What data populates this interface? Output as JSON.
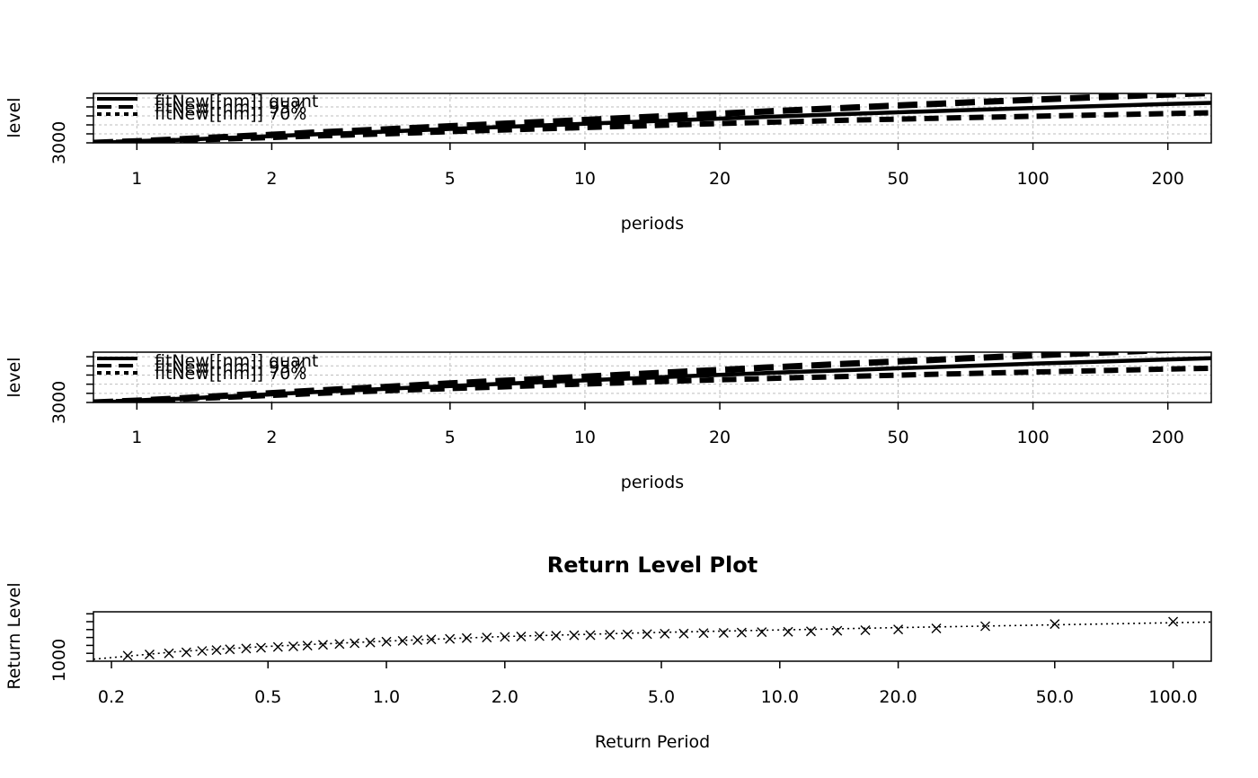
{
  "chart_data": [
    {
      "type": "line",
      "title": "",
      "xlabel": "periods",
      "ylabel": "level",
      "x_scale": "log",
      "xlim": [
        0.8,
        250
      ],
      "ylim": [
        3000,
        3550
      ],
      "x_ticks": [
        1,
        2,
        5,
        10,
        20,
        50,
        100,
        200
      ],
      "y_tick_labels": [
        "3000"
      ],
      "y_ticks": [
        3000,
        3100,
        3200,
        3300,
        3400,
        3500
      ],
      "grid": true,
      "legend": {
        "placement": "top-left",
        "entries": [
          "fitNew[[nm]] quant",
          "fitNew[[nm]] 95%",
          "fitNew[[nm]] 70%"
        ]
      },
      "x": [
        0.8,
        1,
        1.2,
        1.5,
        2,
        2.5,
        3,
        4,
        5,
        6,
        7,
        8,
        10,
        12,
        15,
        20,
        25,
        30,
        40,
        50,
        60,
        70,
        80,
        100,
        120,
        150,
        200,
        250
      ],
      "series": [
        {
          "name": "fitNew[[nm]] quant",
          "values": [
            3000,
            3015,
            3030,
            3050,
            3075,
            3095,
            3110,
            3135,
            3155,
            3170,
            3183,
            3194,
            3212,
            3228,
            3246,
            3270,
            3288,
            3302,
            3324,
            3340,
            3353,
            3364,
            3373,
            3388,
            3400,
            3414,
            3432,
            3445
          ]
        },
        {
          "name": "fitNew[[nm]] 95%",
          "values": [
            3000,
            3018,
            3036,
            3060,
            3090,
            3115,
            3132,
            3162,
            3185,
            3203,
            3219,
            3232,
            3255,
            3274,
            3296,
            3325,
            3348,
            3366,
            3394,
            3416,
            3433,
            3448,
            3460,
            3480,
            3496,
            3515,
            3538,
            3555
          ]
        },
        {
          "name": "fitNew[[nm]] 70%",
          "values": [
            3000,
            3012,
            3024,
            3040,
            3060,
            3076,
            3088,
            3108,
            3125,
            3137,
            3147,
            3156,
            3170,
            3182,
            3196,
            3215,
            3228,
            3238,
            3254,
            3264,
            3273,
            3280,
            3286,
            3296,
            3304,
            3313,
            3326,
            3335
          ]
        }
      ]
    },
    {
      "type": "line",
      "title": "",
      "xlabel": "periods",
      "ylabel": "level",
      "x_scale": "log",
      "xlim": [
        0.8,
        250
      ],
      "ylim": [
        3000,
        3550
      ],
      "x_ticks": [
        1,
        2,
        5,
        10,
        20,
        50,
        100,
        200
      ],
      "y_tick_labels": [
        "3000"
      ],
      "y_ticks": [
        3000,
        3100,
        3200,
        3300,
        3400,
        3500
      ],
      "grid": true,
      "legend": {
        "placement": "top-left",
        "entries": [
          "fitNew[[nm]] quant",
          "fitNew[[nm]] 95%",
          "fitNew[[nm]] 70%"
        ]
      },
      "x": [
        0.8,
        1,
        1.2,
        1.5,
        2,
        2.5,
        3,
        4,
        5,
        6,
        7,
        8,
        10,
        12,
        15,
        20,
        25,
        30,
        40,
        50,
        60,
        70,
        80,
        100,
        120,
        150,
        200,
        250
      ],
      "series": [
        {
          "name": "fitNew[[nm]] quant",
          "values": [
            3000,
            3018,
            3036,
            3060,
            3090,
            3114,
            3132,
            3160,
            3180,
            3196,
            3210,
            3222,
            3242,
            3258,
            3278,
            3302,
            3320,
            3335,
            3357,
            3374,
            3387,
            3398,
            3408,
            3424,
            3436,
            3451,
            3470,
            3484
          ]
        },
        {
          "name": "fitNew[[nm]] 95%",
          "values": [
            3000,
            3020,
            3040,
            3068,
            3102,
            3130,
            3150,
            3183,
            3208,
            3228,
            3244,
            3258,
            3282,
            3302,
            3326,
            3356,
            3380,
            3398,
            3427,
            3449,
            3466,
            3481,
            3494,
            3515,
            3531,
            3550,
            3575,
            3594
          ]
        },
        {
          "name": "fitNew[[nm]] 70%",
          "values": [
            3000,
            3016,
            3032,
            3052,
            3078,
            3098,
            3114,
            3137,
            3152,
            3164,
            3176,
            3186,
            3202,
            3214,
            3230,
            3248,
            3260,
            3272,
            3287,
            3299,
            3308,
            3315,
            3322,
            3333,
            3341,
            3352,
            3365,
            3374
          ]
        }
      ]
    },
    {
      "type": "scatter",
      "title": "Return Level Plot",
      "xlabel": "Return Period",
      "ylabel": "Return Level",
      "x_scale": "log",
      "xlim": [
        0.18,
        125
      ],
      "ylim": [
        1000,
        1250
      ],
      "x_ticks": [
        0.2,
        0.5,
        1.0,
        2.0,
        5.0,
        10.0,
        20.0,
        50.0,
        100.0
      ],
      "x_tick_labels": [
        "0.2",
        "0.5",
        "1.0",
        "2.0",
        "5.0",
        "10.0",
        "20.0",
        "50.0",
        "100.0"
      ],
      "y_tick_labels": [
        "1000"
      ],
      "y_ticks": [
        1000,
        1040,
        1080,
        1120,
        1160,
        1200,
        1240
      ],
      "grid": false,
      "fitted_line": {
        "style": "dotted",
        "x": [
          0.18,
          0.3,
          0.5,
          1.0,
          2.0,
          5.0,
          10.0,
          20.0,
          50.0,
          125.0
        ],
        "values": [
          1010,
          1050,
          1075,
          1102,
          1125,
          1146,
          1158,
          1170,
          1184,
          1198
        ]
      },
      "points": {
        "marker": "x",
        "x": [
          0.22,
          0.25,
          0.28,
          0.31,
          0.34,
          0.37,
          0.4,
          0.44,
          0.48,
          0.53,
          0.58,
          0.63,
          0.69,
          0.76,
          0.83,
          0.91,
          1.0,
          1.1,
          1.2,
          1.3,
          1.45,
          1.6,
          1.8,
          2.0,
          2.2,
          2.45,
          2.7,
          3.0,
          3.3,
          3.7,
          4.1,
          4.6,
          5.1,
          5.7,
          6.4,
          7.2,
          8.0,
          9.0,
          10.5,
          12.0,
          14.0,
          16.5,
          20.0,
          25.0,
          33.3,
          50.0,
          100.0
        ],
        "values": [
          1028,
          1034,
          1040,
          1045,
          1052,
          1056,
          1060,
          1064,
          1068,
          1072,
          1075,
          1079,
          1083,
          1087,
          1091,
          1095,
          1099,
          1103,
          1107,
          1110,
          1113,
          1117,
          1120,
          1123,
          1125,
          1127,
          1129,
          1131,
          1132,
          1134,
          1135,
          1137,
          1139,
          1140,
          1142,
          1143,
          1145,
          1147,
          1149,
          1151,
          1154,
          1157,
          1161,
          1166,
          1177,
          1188,
          1200
        ]
      }
    }
  ]
}
